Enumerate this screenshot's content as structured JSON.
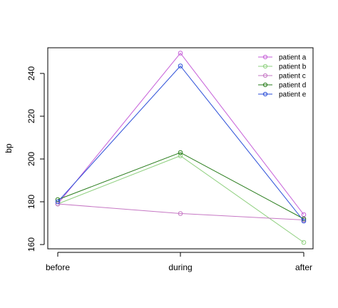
{
  "chart_data": {
    "type": "line",
    "title": "",
    "xlabel": "",
    "ylabel": "bp",
    "categories": [
      "before",
      "during",
      "after"
    ],
    "ylim": [
      158,
      252
    ],
    "yticks": [
      160,
      180,
      200,
      220,
      240
    ],
    "grid": false,
    "legend_position": "top-right",
    "series": [
      {
        "name": "patient a",
        "color": "#c65fd8",
        "values": [
          179,
          249.5,
          174
        ]
      },
      {
        "name": "patient b",
        "color": "#8fd07f",
        "values": [
          179,
          201.5,
          161
        ]
      },
      {
        "name": "patient c",
        "color": "#c678c4",
        "values": [
          179,
          174.5,
          171.5
        ]
      },
      {
        "name": "patient d",
        "color": "#2a7d1d",
        "values": [
          181,
          203,
          172
        ]
      },
      {
        "name": "patient e",
        "color": "#2b4ed8",
        "values": [
          180,
          243.5,
          171
        ]
      }
    ]
  }
}
